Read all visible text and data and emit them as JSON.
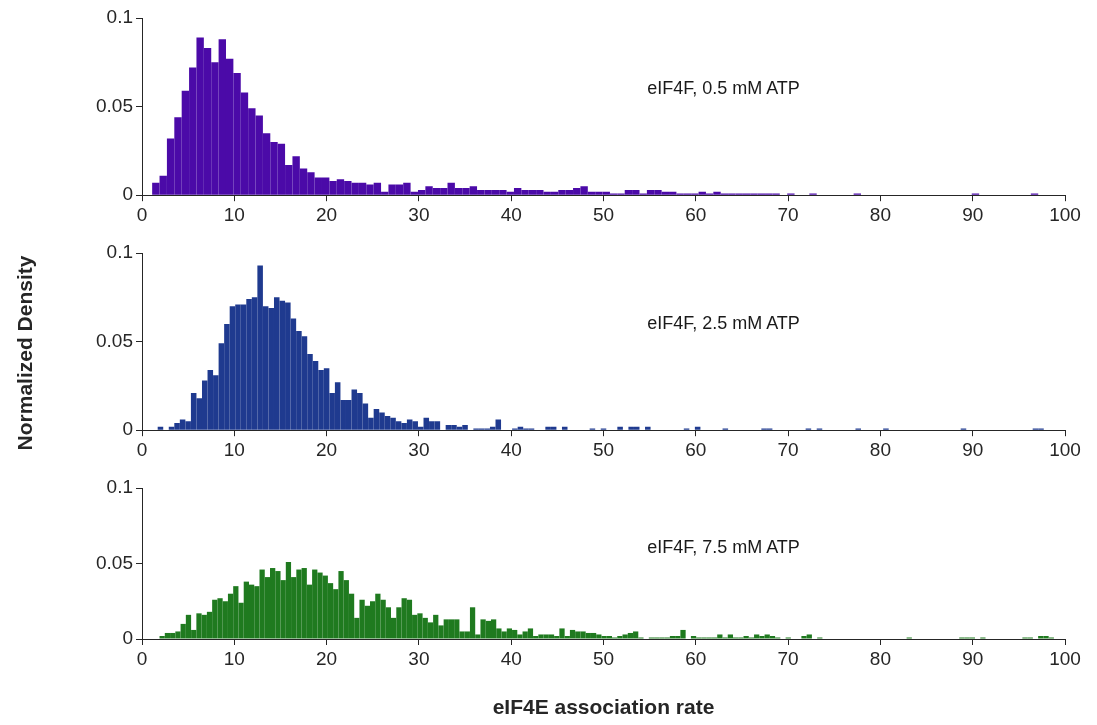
{
  "chart_data": [
    {
      "type": "histogram",
      "annotations": [
        "eIF4F, 0.5 mM ATP"
      ],
      "color": "#4b0aa8",
      "xlim": [
        0,
        100
      ],
      "xticks": [
        0,
        10,
        20,
        30,
        40,
        50,
        60,
        70,
        80,
        90,
        100
      ],
      "ylim": [
        0,
        0.1
      ],
      "yticks": [
        0,
        0.05,
        0.1
      ],
      "bins": [
        1.1,
        1.9,
        2.7,
        3.5,
        4.3,
        5.1,
        5.9,
        6.7,
        7.5,
        8.3,
        9.1,
        9.9,
        10.7,
        11.5,
        12.3,
        13.1,
        13.9,
        14.7,
        15.5,
        16.3,
        17.1,
        17.9,
        18.7,
        19.5,
        20.3,
        21.1,
        21.9,
        22.7,
        23.5,
        24.3,
        25.1,
        25.9,
        26.7,
        27.5,
        28.3,
        29.1,
        29.9,
        30.7,
        31.5,
        32.3,
        33.1,
        33.9,
        34.7,
        35.5,
        36.3,
        37.1,
        37.9,
        38.7,
        39.5,
        40.3,
        41.1,
        41.9,
        42.7,
        43.5,
        44.3,
        45.1,
        45.9,
        46.7,
        47.5,
        48.3,
        49.1,
        49.9,
        50.7,
        51.5,
        52.3,
        53.1,
        53.9,
        54.7,
        55.5,
        56.3,
        57.1,
        57.9,
        58.7,
        59.5,
        60.3,
        61.1,
        61.9,
        62.7,
        63.5,
        64.3,
        65.1,
        65.9,
        66.7,
        67.5,
        68.3,
        69.1,
        69.9,
        70.7,
        71.5,
        72.3,
        73.1,
        73.9,
        74.7,
        75.5,
        76.3,
        77.1,
        77.9,
        78.7,
        79.5,
        80.3,
        81.1,
        81.9,
        82.7,
        83.5,
        84.3,
        85.1,
        85.9,
        86.7,
        87.5,
        88.3,
        89.1,
        89.9,
        90.7,
        91.5,
        92.3,
        93.1,
        93.9,
        94.7,
        95.5,
        96.3,
        97.1,
        97.9,
        98.7
      ],
      "values": [
        0.007,
        0.011,
        0.032,
        0.044,
        0.059,
        0.072,
        0.089,
        0.083,
        0.075,
        0.088,
        0.077,
        0.069,
        0.058,
        0.049,
        0.045,
        0.035,
        0.03,
        0.029,
        0.017,
        0.022,
        0.015,
        0.013,
        0.01,
        0.01,
        0.008,
        0.009,
        0.008,
        0.007,
        0.007,
        0.006,
        0.007,
        0.002,
        0.006,
        0.006,
        0.007,
        0.002,
        0.003,
        0.005,
        0.004,
        0.004,
        0.007,
        0.004,
        0.004,
        0.005,
        0.003,
        0.003,
        0.003,
        0.003,
        0.002,
        0.004,
        0.003,
        0.003,
        0.003,
        0.002,
        0.002,
        0.003,
        0.003,
        0.004,
        0.005,
        0.002,
        0.002,
        0.002,
        0.001,
        0.001,
        0.003,
        0.003,
        0.001,
        0.003,
        0.003,
        0.002,
        0.002,
        0.001,
        0.001,
        0.001,
        0.002,
        0.001,
        0.002,
        0.001,
        0.001,
        0.001,
        0.001,
        0.001,
        0.001,
        0.001,
        0.001,
        0,
        0.001,
        0,
        0,
        0.001,
        0,
        0,
        0,
        0,
        0,
        0.001,
        0,
        0,
        0,
        0,
        0,
        0,
        0,
        0,
        0,
        0,
        0,
        0,
        0,
        0,
        0,
        0.001,
        0,
        0,
        0,
        0,
        0,
        0,
        0,
        0.001,
        0,
        0
      ]
    },
    {
      "type": "histogram",
      "annotations": [
        "eIF4F, 2.5 mM ATP"
      ],
      "ylabel": "Normalized Density",
      "color": "#1f3a8f",
      "xlim": [
        0,
        100
      ],
      "xticks": [
        0,
        10,
        20,
        30,
        40,
        50,
        60,
        70,
        80,
        90,
        100
      ],
      "ylim": [
        0,
        0.1
      ],
      "yticks": [
        0,
        0.05,
        0.1
      ],
      "bins": [
        1.7,
        2.3,
        2.9,
        3.5,
        4.1,
        4.7,
        5.3,
        5.9,
        6.5,
        7.1,
        7.7,
        8.3,
        8.9,
        9.5,
        10.1,
        10.7,
        11.3,
        11.9,
        12.5,
        13.1,
        13.7,
        14.3,
        14.9,
        15.5,
        16.1,
        16.7,
        17.3,
        17.9,
        18.5,
        19.1,
        19.7,
        20.3,
        20.9,
        21.5,
        22.1,
        22.7,
        23.3,
        23.9,
        24.5,
        25.1,
        25.7,
        26.3,
        26.9,
        27.5,
        28.1,
        28.7,
        29.3,
        29.9,
        30.5,
        31.1,
        31.7,
        32.3,
        32.9,
        33.5,
        34.1,
        34.7,
        35.3,
        35.9,
        36.5,
        37.1,
        37.7,
        38.3,
        38.9,
        39.5,
        40.1,
        40.7,
        41.3,
        41.9,
        42.5,
        43.1,
        43.7,
        44.3,
        44.9,
        45.5,
        46.1,
        46.7,
        47.3,
        47.9,
        48.5,
        49.1,
        49.7,
        50.3,
        50.9,
        51.5,
        52.1,
        52.7,
        53.3,
        53.9,
        54.5,
        55.1,
        55.7,
        56.3,
        56.9,
        57.5,
        58.1,
        58.7,
        59.3,
        59.9,
        60.5,
        61.1,
        61.7,
        62.3,
        62.9,
        63.5,
        64.1,
        64.7,
        65.3,
        65.9,
        66.5,
        67.1,
        67.7,
        68.3,
        68.9,
        69.5,
        70.1,
        70.7,
        71.3,
        71.9,
        72.5,
        73.1,
        73.7,
        74.3,
        74.9,
        75.5,
        76.1,
        76.7,
        77.3,
        77.9,
        78.5,
        79.1,
        79.7,
        80.3,
        80.9,
        81.5,
        82.1,
        82.7,
        83.3,
        83.9,
        84.5,
        85.1,
        85.7,
        86.3,
        86.9,
        87.5,
        88.1,
        88.7,
        89.3,
        89.9,
        90.5,
        91.1,
        91.7,
        92.3,
        92.9,
        93.5,
        94.1,
        94.7,
        95.3,
        95.9,
        96.5,
        97.1,
        97.7,
        98.3
      ],
      "values": [
        0.002,
        0,
        0.002,
        0.004,
        0.006,
        0.005,
        0.021,
        0.018,
        0.028,
        0.034,
        0.031,
        0.049,
        0.06,
        0.07,
        0.071,
        0.071,
        0.074,
        0.075,
        0.093,
        0.07,
        0.069,
        0.075,
        0.073,
        0.072,
        0.063,
        0.056,
        0.053,
        0.043,
        0.039,
        0.034,
        0.035,
        0.021,
        0.027,
        0.017,
        0.017,
        0.023,
        0.021,
        0.015,
        0.007,
        0.012,
        0.01,
        0.008,
        0.007,
        0.005,
        0.004,
        0.006,
        0.005,
        0.002,
        0.007,
        0.005,
        0.005,
        0,
        0.003,
        0.003,
        0.002,
        0.003,
        0,
        0.001,
        0.001,
        0.001,
        0.002,
        0.006,
        0,
        0,
        0.001,
        0.002,
        0.001,
        0.001,
        0,
        0,
        0.002,
        0.002,
        0,
        0.002,
        0,
        0,
        0,
        0,
        0.001,
        0,
        0.001,
        0,
        0,
        0.002,
        0,
        0.002,
        0.002,
        0,
        0.002,
        0,
        0,
        0,
        0,
        0,
        0,
        0.001,
        0,
        0.002,
        0,
        0,
        0,
        0,
        0.001,
        0,
        0,
        0,
        0,
        0,
        0,
        0.001,
        0.001,
        0,
        0,
        0,
        0,
        0,
        0,
        0.001,
        0,
        0.001,
        0,
        0,
        0,
        0,
        0,
        0,
        0.001,
        0,
        0,
        0,
        0,
        0.001,
        0,
        0,
        0,
        0,
        0,
        0,
        0,
        0,
        0,
        0,
        0,
        0,
        0,
        0.001,
        0,
        0,
        0,
        0,
        0,
        0,
        0,
        0,
        0,
        0,
        0,
        0,
        0.001,
        0.001,
        0
      ]
    },
    {
      "type": "histogram",
      "annotations": [
        "eIF4F, 7.5 mM ATP"
      ],
      "xlabel": "eIF4E association rate",
      "color": "#1f7a1f",
      "xlim": [
        0,
        100
      ],
      "xticks": [
        0,
        10,
        20,
        30,
        40,
        50,
        60,
        70,
        80,
        90,
        100
      ],
      "ylim": [
        0,
        0.1
      ],
      "yticks": [
        0,
        0.05,
        0.1
      ],
      "bins": [
        1.9,
        2.47,
        3.04,
        3.61,
        4.18,
        4.75,
        5.32,
        5.89,
        6.46,
        7.03,
        7.6,
        8.17,
        8.74,
        9.31,
        9.88,
        10.45,
        11.02,
        11.59,
        12.16,
        12.73,
        13.3,
        13.87,
        14.44,
        15.01,
        15.58,
        16.15,
        16.72,
        17.29,
        17.86,
        18.43,
        19,
        19.57,
        20.14,
        20.71,
        21.28,
        21.85,
        22.42,
        22.99,
        23.56,
        24.13,
        24.7,
        25.27,
        25.84,
        26.41,
        26.98,
        27.55,
        28.12,
        28.69,
        29.26,
        29.83,
        30.4,
        30.97,
        31.54,
        32.11,
        32.68,
        33.25,
        33.82,
        34.39,
        34.96,
        35.53,
        36.1,
        36.67,
        37.24,
        37.81,
        38.38,
        38.95,
        39.52,
        40.09,
        40.66,
        41.23,
        41.8,
        42.37,
        42.94,
        43.51,
        44.08,
        44.65,
        45.22,
        45.79,
        46.36,
        46.93,
        47.5,
        48.07,
        48.64,
        49.21,
        49.78,
        50.35,
        50.92,
        51.49,
        52.06,
        52.63,
        53.2,
        53.77,
        54.34,
        54.91,
        55.48,
        56.05,
        56.62,
        57.19,
        57.76,
        58.33,
        58.9,
        59.47,
        60.04,
        60.61,
        61.18,
        61.75,
        62.32,
        62.89,
        63.46,
        64.03,
        64.6,
        65.17,
        65.74,
        66.31,
        66.88,
        67.45,
        68.02,
        68.59,
        69.16,
        69.73,
        70.3,
        70.87,
        71.44,
        72.01,
        72.58,
        73.15,
        73.72,
        74.29,
        74.86,
        75.43,
        76,
        76.57,
        77.14,
        77.71,
        78.28,
        78.85,
        79.42,
        79.99,
        80.56,
        81.13,
        81.7,
        82.27,
        82.84,
        83.41,
        83.98,
        84.55,
        85.12,
        85.69,
        86.26,
        86.83,
        87.4,
        87.97,
        88.54,
        89.11,
        89.68,
        90.25,
        90.82,
        91.39,
        91.96,
        92.53,
        93.1,
        93.67,
        94.24,
        94.81,
        95.38,
        95.95,
        96.52,
        97.09,
        97.66,
        98.23,
        98.8
      ],
      "values": [
        0.002,
        0.004,
        0.004,
        0.005,
        0.01,
        0.016,
        0.006,
        0.017,
        0.016,
        0.018,
        0.026,
        0.027,
        0.025,
        0.03,
        0.035,
        0.024,
        0.038,
        0.036,
        0.035,
        0.046,
        0.041,
        0.047,
        0.045,
        0.039,
        0.051,
        0.041,
        0.046,
        0.047,
        0.036,
        0.046,
        0.044,
        0.042,
        0.037,
        0.033,
        0.045,
        0.039,
        0.03,
        0.014,
        0.026,
        0.022,
        0.025,
        0.03,
        0.026,
        0.021,
        0.014,
        0.021,
        0.027,
        0.026,
        0.016,
        0.017,
        0.014,
        0.011,
        0.016,
        0.009,
        0.013,
        0.013,
        0.013,
        0.005,
        0.005,
        0.021,
        0.003,
        0.013,
        0.012,
        0.013,
        0.007,
        0.005,
        0.007,
        0.006,
        0.003,
        0.005,
        0.007,
        0.002,
        0.003,
        0.003,
        0.003,
        0.002,
        0.007,
        0.002,
        0.006,
        0.005,
        0.005,
        0.004,
        0.004,
        0.003,
        0.002,
        0.002,
        0.001,
        0.002,
        0.003,
        0.004,
        0.005,
        0.001,
        0,
        0.001,
        0.001,
        0.001,
        0.001,
        0.002,
        0.002,
        0.006,
        0,
        0.002,
        0.001,
        0.001,
        0.001,
        0.001,
        0.003,
        0.001,
        0.003,
        0.001,
        0.001,
        0.002,
        0.001,
        0.003,
        0.002,
        0.003,
        0.002,
        0.001,
        0,
        0.001,
        0,
        0,
        0.002,
        0.003,
        0,
        0.001,
        0,
        0,
        0,
        0,
        0,
        0,
        0,
        0,
        0,
        0,
        0,
        0,
        0,
        0,
        0,
        0,
        0.001,
        0,
        0,
        0,
        0,
        0,
        0,
        0,
        0,
        0,
        0.001,
        0.001,
        0.001,
        0,
        0.001,
        0,
        0,
        0,
        0,
        0,
        0,
        0,
        0.001,
        0.001,
        0,
        0.002,
        0.002,
        0.001
      ]
    }
  ]
}
